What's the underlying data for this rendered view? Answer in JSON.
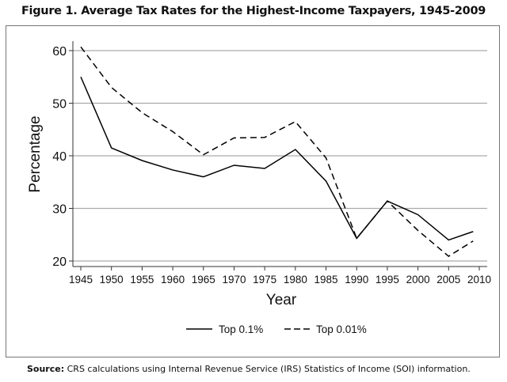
{
  "chart_data": {
    "type": "line",
    "title": "Figure 1. Average Tax Rates for the Highest-Income Taxpayers, 1945-2009",
    "xlabel": "Year",
    "ylabel": "Percentage",
    "xlim": [
      1945,
      2010
    ],
    "ylim": [
      20,
      60
    ],
    "xticks": [
      1945,
      1950,
      1955,
      1960,
      1965,
      1970,
      1975,
      1980,
      1985,
      1990,
      1995,
      2000,
      2005,
      2010
    ],
    "yticks": [
      20,
      30,
      40,
      50,
      60
    ],
    "grid": true,
    "legend_position": "bottom",
    "x": [
      1945,
      1950,
      1955,
      1960,
      1965,
      1970,
      1975,
      1980,
      1985,
      1990,
      1995,
      2000,
      2005,
      2009
    ],
    "series": [
      {
        "name": "Top 0.1%",
        "style": "solid",
        "values": [
          55.0,
          41.5,
          39.1,
          37.3,
          36.0,
          38.2,
          37.6,
          41.2,
          35.2,
          24.3,
          31.4,
          28.8,
          24.0,
          25.6
        ]
      },
      {
        "name": "Top 0.01%",
        "style": "dashed",
        "values": [
          60.7,
          53.0,
          48.2,
          44.6,
          40.2,
          43.4,
          43.5,
          46.5,
          39.6,
          24.3,
          31.4,
          25.8,
          20.9,
          23.8
        ]
      }
    ]
  },
  "source": {
    "label": "Source:",
    "text": " CRS calculations using Internal Revenue Service (IRS) Statistics of Income (SOI) information."
  }
}
